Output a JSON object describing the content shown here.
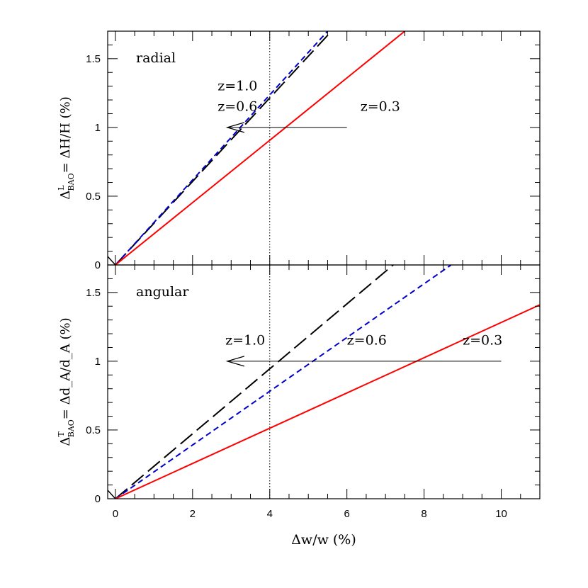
{
  "chart_data": [
    {
      "type": "line",
      "panel": "radial",
      "panel_label": "radial",
      "ylabel": "Δ^L_BAO = ΔH/H (%)",
      "ylabel_parts": {
        "delta": "Δ",
        "sup": "L",
        "sub": "BAO",
        "eq": "=",
        "rest": "ΔH/H  (%)"
      },
      "xlim": [
        -0.2,
        11
      ],
      "ylim": [
        0,
        1.7
      ],
      "yticks": [
        0,
        0.5,
        1,
        1.5
      ],
      "ytick_labels": [
        "0",
        "0.5",
        "1",
        "1.5"
      ],
      "series": [
        {
          "name": "z=1.0",
          "color": "#000000",
          "dash": "long",
          "x": [
            0,
            5.6
          ],
          "y": [
            0,
            1.7
          ]
        },
        {
          "name": "z=0.6",
          "color": "#0000cc",
          "dash": "short",
          "x": [
            0,
            5.5
          ],
          "y": [
            0,
            1.7
          ]
        },
        {
          "name": "z=0.3",
          "color": "#ff0000",
          "dash": "solid",
          "x": [
            0,
            7.5
          ],
          "y": [
            0,
            1.7
          ]
        }
      ],
      "labels": [
        {
          "text": "z=1.0",
          "x": 2.65,
          "y": 1.27
        },
        {
          "text": "z=0.6",
          "x": 2.65,
          "y": 1.12
        },
        {
          "text": "z=0.3",
          "x": 6.35,
          "y": 1.12
        }
      ],
      "arrow": {
        "from": [
          6.0,
          1.0
        ],
        "to": [
          2.9,
          1.0
        ]
      },
      "vline_x": 4
    },
    {
      "type": "line",
      "panel": "angular",
      "panel_label": "angular",
      "ylabel": "Δ^T_BAO = Δd_A/d_A (%)",
      "ylabel_parts": {
        "delta": "Δ",
        "sup": "T",
        "sub": "BAO",
        "eq": "=",
        "rest": "Δd_A/d_A  (%)"
      },
      "xlabel": "Δw/w (%)",
      "xlim": [
        -0.2,
        11
      ],
      "ylim": [
        0,
        1.7
      ],
      "xticks": [
        0,
        2,
        4,
        6,
        8,
        10
      ],
      "xtick_labels": [
        "0",
        "2",
        "4",
        "6",
        "8",
        "10"
      ],
      "yticks": [
        0,
        0.5,
        1,
        1.5
      ],
      "ytick_labels": [
        "0",
        "0.5",
        "1",
        "1.5"
      ],
      "series": [
        {
          "name": "z=1.0",
          "color": "#000000",
          "dash": "long",
          "x": [
            0,
            7.2
          ],
          "y": [
            0,
            1.7
          ]
        },
        {
          "name": "z=0.6",
          "color": "#0000cc",
          "dash": "short",
          "x": [
            0,
            8.7
          ],
          "y": [
            0,
            1.7
          ]
        },
        {
          "name": "z=0.3",
          "color": "#ff0000",
          "dash": "solid",
          "x": [
            0,
            11
          ],
          "y": [
            0,
            1.41
          ]
        }
      ],
      "labels": [
        {
          "text": "z=1.0",
          "x": 2.85,
          "y": 1.12
        },
        {
          "text": "z=0.6",
          "x": 6.0,
          "y": 1.12
        },
        {
          "text": "z=0.3",
          "x": 9.0,
          "y": 1.12
        }
      ],
      "arrow": {
        "from": [
          10.0,
          1.0
        ],
        "to": [
          2.9,
          1.0
        ]
      },
      "vline_x": 4
    }
  ]
}
